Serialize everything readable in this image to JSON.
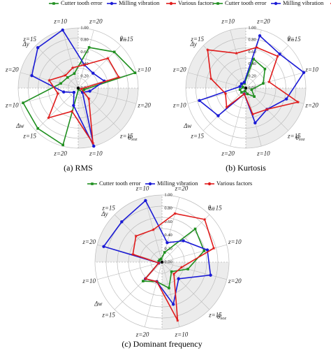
{
  "colors": {
    "Cutter tooth error": "#1f8f1f",
    "Milling vibration": "#1a1ad6",
    "Various factors": "#e01b1b",
    "grid": "#bdbdbd",
    "shade": "#ececec"
  },
  "chart_data": [
    {
      "type": "radar",
      "caption": "(a)  RMS",
      "radial_ticks": [
        "0.00",
        "0.20",
        "0.40",
        "0.60",
        "0.80",
        "1.00"
      ],
      "rlim": [
        0,
        1
      ],
      "axis_labels": [
        "z=20",
        "z=15",
        "z=10",
        "z=20",
        "z=15",
        "z=10",
        "z=20",
        "z=15",
        "z=10",
        "z=20",
        "z=15",
        "z=10"
      ],
      "group_labels": [
        "θ_xz",
        "θ_xoz",
        "Δw",
        "Δy"
      ],
      "series": [
        {
          "name": "Cutter tooth error",
          "values": [
            0.3,
            0.25,
            0.25,
            0.7,
            0.85,
            0.98,
            0.1,
            0.1,
            0.02,
            0.98,
            0.95,
            0.95
          ]
        },
        {
          "name": "Milling vibration",
          "values": [
            0.8,
            0.95,
            1.0,
            0.4,
            0.35,
            0.45,
            0.2,
            0.1,
            1.0,
            0.3,
            0.1,
            0.25
          ]
        },
        {
          "name": "Various factors",
          "values": [
            0.5,
            0.3,
            0.35,
            0.4,
            0.7,
            0.7,
            0.05,
            0.25,
            0.95,
            0.4,
            0.7,
            0.35
          ]
        }
      ]
    },
    {
      "type": "radar",
      "caption": "(b)  Kurtosis",
      "radial_ticks": [
        "0.00",
        "0.20",
        "0.40",
        "0.60",
        "0.80",
        "1.00"
      ],
      "rlim": [
        0,
        1
      ],
      "axis_labels": [
        "z=20",
        "z=15",
        "z=10",
        "z=20",
        "z=15",
        "z=10",
        "z=20",
        "z=15",
        "z=10",
        "z=20",
        "z=15",
        "z=10"
      ],
      "group_labels": [
        "θ_xz",
        "θ_xoz",
        "Δw",
        "Δy"
      ],
      "series": [
        {
          "name": "Cutter tooth error",
          "values": [
            0.05,
            0.1,
            0.08,
            0.5,
            0.45,
            0.3,
            0.1,
            0.2,
            0.1,
            0.05,
            0.1,
            0.1
          ]
        },
        {
          "name": "Milling vibration",
          "values": [
            0.1,
            0.1,
            0.1,
            0.9,
            0.8,
            1.0,
            0.7,
            0.5,
            0.6,
            0.1,
            0.65,
            0.8
          ]
        },
        {
          "name": "Various factors",
          "values": [
            0.6,
            0.9,
            0.6,
            0.7,
            0.75,
            0.4,
            0.9,
            0.5,
            0.45,
            0.1,
            0.45,
            0.35
          ]
        }
      ]
    },
    {
      "type": "radar",
      "caption": "(c)  Dominant frequency",
      "radial_ticks": [
        "0.00",
        "0.20",
        "0.40",
        "0.60",
        "0.80",
        "1.00"
      ],
      "rlim": [
        0,
        1
      ],
      "axis_labels": [
        "z=20",
        "z=15",
        "z=10",
        "z=20",
        "z=15",
        "z=10",
        "z=20",
        "z=15",
        "z=10",
        "z=20",
        "z=15",
        "z=10"
      ],
      "group_labels": [
        "θ_xz",
        "θ_xoz",
        "Δw",
        "Δy"
      ],
      "series": [
        {
          "name": "Cutter tooth error",
          "values": [
            0.05,
            0.05,
            0.05,
            0.15,
            0.7,
            0.65,
            0.4,
            0.2,
            0.4,
            0.3,
            0.4,
            0.05
          ]
        },
        {
          "name": "Milling vibration",
          "values": [
            0.9,
            0.85,
            0.95,
            0.3,
            0.45,
            0.7,
            0.75,
            0.35,
            0.65,
            0.3,
            0.35,
            0.05
          ]
        },
        {
          "name": "Various factors",
          "values": [
            0.45,
            0.55,
            0.5,
            0.75,
            0.9,
            0.8,
            0.3,
            0.25,
            0.9,
            0.3,
            0.35,
            0.05
          ]
        }
      ]
    }
  ]
}
